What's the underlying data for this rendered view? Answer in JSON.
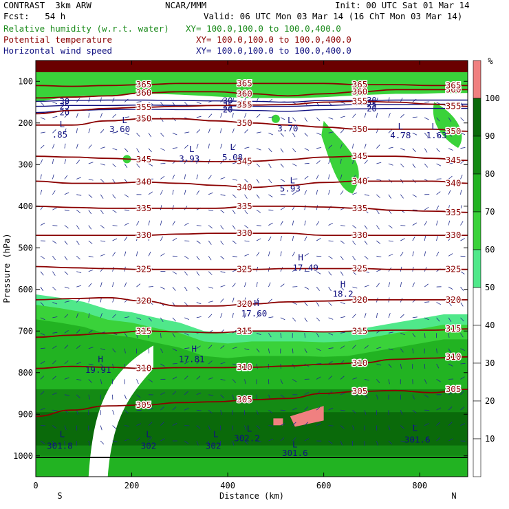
{
  "header": {
    "title_left": "CONTRAST  3km ARW",
    "fcst": "Fcst:   54 h",
    "source": "NCAR/MMM",
    "init": "Init: 00 UTC Sat 01 Mar 14",
    "valid": "Valid: 06 UTC Mon 03 Mar 14 (16 ChT Mon 03 Mar 14)",
    "rh_label": "Relative humidity (w.r.t. water)",
    "rh_xy": "XY= 100.0,100.0 to 100.0,400.0",
    "theta_label": "Potential temperature",
    "theta_xy": "XY= 100.0,100.0 to 100.0,400.0",
    "wind_label": "Horizontal wind speed",
    "wind_xy": "XY= 100.0,100.0 to 100.0,400.0"
  },
  "colors": {
    "rh": "#1a8a1a",
    "theta": "#8b0000",
    "wind": "#101080",
    "vectors": "#1e2a8c",
    "rh_scale": [
      "#ffffff",
      "#ffffff",
      "#ffffff",
      "#ffffff",
      "#ffffff",
      "#50e88a",
      "#3ad23a",
      "#22b322",
      "#148a14",
      "#0a6a0a",
      "#f08080"
    ]
  },
  "chart_data": {
    "type": "heatmap",
    "description_ok": false,
    "xlabel": "Distance (km)",
    "ylabel": "Pressure (hPa)",
    "xlim": [
      0,
      900
    ],
    "ylim": [
      1050,
      50
    ],
    "x_ticks": [
      0,
      200,
      400,
      600,
      800
    ],
    "y_ticks": [
      100,
      200,
      300,
      400,
      500,
      600,
      700,
      800,
      900,
      1000
    ],
    "x_end_labels": [
      "S",
      "N"
    ],
    "colorbar": {
      "unit": "%",
      "levels": [
        10,
        20,
        30,
        40,
        50,
        60,
        70,
        80,
        90,
        100
      ]
    },
    "theta_contours": [
      {
        "value": 305,
        "p": [
          905,
          890,
          880,
          878,
          872,
          870,
          865,
          862,
          850,
          845,
          843,
          848,
          840
        ]
      },
      {
        "value": 310,
        "p": [
          790,
          785,
          787,
          790,
          788,
          788,
          787,
          784,
          780,
          777,
          768,
          765,
          762
        ]
      },
      {
        "value": 315,
        "p": [
          715,
          710,
          705,
          700,
          702,
          704,
          700,
          700,
          702,
          700,
          698,
          698,
          695
        ]
      },
      {
        "value": 320,
        "p": [
          625,
          622,
          620,
          628,
          640,
          640,
          635,
          630,
          628,
          625,
          625,
          625,
          625
        ]
      },
      {
        "value": 325,
        "p": [
          545,
          548,
          550,
          552,
          552,
          552,
          552,
          550,
          550,
          550,
          552,
          552,
          552
        ]
      },
      {
        "value": 330,
        "p": [
          470,
          470,
          470,
          470,
          467,
          465,
          465,
          465,
          470,
          470,
          470,
          470,
          470
        ]
      },
      {
        "value": 335,
        "p": [
          400,
          403,
          405,
          405,
          405,
          405,
          400,
          400,
          402,
          405,
          410,
          412,
          415
        ]
      },
      {
        "value": 340,
        "p": [
          340,
          345,
          345,
          342,
          345,
          350,
          355,
          350,
          343,
          340,
          340,
          340,
          345
        ]
      },
      {
        "value": 345,
        "p": [
          280,
          282,
          285,
          288,
          292,
          293,
          292,
          288,
          282,
          280,
          280,
          285,
          290
        ]
      },
      {
        "value": 350,
        "p": [
          205,
          205,
          195,
          190,
          190,
          195,
          200,
          205,
          210,
          215,
          215,
          215,
          220
        ]
      },
      {
        "value": 355,
        "p": [
          178,
          170,
          165,
          162,
          160,
          158,
          157,
          156,
          150,
          148,
          150,
          155,
          160
        ]
      },
      {
        "value": 360,
        "p": [
          140,
          138,
          135,
          128,
          125,
          125,
          130,
          135,
          130,
          125,
          120,
          120,
          120
        ]
      },
      {
        "value": 365,
        "p": [
          110,
          112,
          110,
          108,
          105,
          105,
          105,
          105,
          105,
          108,
          108,
          110,
          110
        ]
      }
    ],
    "wind_contours": [
      {
        "value": 20,
        "p": [
          175,
          170,
          168,
          167,
          168,
          168,
          170,
          172,
          168,
          166,
          165,
          165,
          165
        ]
      },
      {
        "value": 25,
        "p": [
          160,
          158,
          158,
          157,
          158,
          158,
          160,
          160,
          158,
          156,
          156,
          155,
          155
        ]
      },
      {
        "value": 30,
        "p": [
          148,
          146,
          145,
          145,
          146,
          147,
          148,
          150,
          146,
          146,
          145,
          145,
          145
        ]
      }
    ],
    "rh_fields": [
      {
        "level": 50,
        "region": "lower-left",
        "p_top": [
          612,
          620,
          630,
          648,
          655,
          668,
          680,
          700,
          705,
          700,
          700,
          700,
          702,
          700,
          690,
          680,
          670,
          660,
          660
        ],
        "x": [
          0,
          50,
          100,
          150,
          200,
          250,
          300,
          350,
          400,
          450,
          500,
          550,
          600,
          650,
          700,
          750,
          800,
          850,
          900
        ]
      },
      {
        "level": 50,
        "region": "upper-band",
        "p_bottom": [
          150,
          140,
          135,
          135,
          130,
          130,
          132,
          135,
          138,
          140,
          140,
          140,
          138,
          135,
          132,
          130,
          130,
          128,
          128
        ]
      }
    ],
    "labels": [
      {
        "text": "L",
        "x": 55,
        "p": 210
      },
      {
        "text": ".85",
        "x": 50,
        "p": 235
      },
      {
        "text": "L",
        "x": 185,
        "p": 200
      },
      {
        "text": "3.60",
        "x": 175,
        "p": 222
      },
      {
        "text": "L",
        "x": 325,
        "p": 270
      },
      {
        "text": "3.93",
        "x": 320,
        "p": 293
      },
      {
        "text": "L",
        "x": 410,
        "p": 265
      },
      {
        "text": "5.08",
        "x": 410,
        "p": 290
      },
      {
        "text": "L",
        "x": 530,
        "p": 200
      },
      {
        "text": "3.70",
        "x": 525,
        "p": 220
      },
      {
        "text": "L",
        "x": 760,
        "p": 215
      },
      {
        "text": "4.78",
        "x": 760,
        "p": 237
      },
      {
        "text": "L",
        "x": 830,
        "p": 215
      },
      {
        "text": "1.63",
        "x": 835,
        "p": 237
      },
      {
        "text": "L",
        "x": 535,
        "p": 345
      },
      {
        "text": "5.93",
        "x": 530,
        "p": 365
      },
      {
        "text": "H",
        "x": 552,
        "p": 530
      },
      {
        "text": "17.49",
        "x": 562,
        "p": 555
      },
      {
        "text": "H",
        "x": 640,
        "p": 595
      },
      {
        "text": "18.2",
        "x": 640,
        "p": 618
      },
      {
        "text": "H",
        "x": 460,
        "p": 640
      },
      {
        "text": "17.60",
        "x": 455,
        "p": 665
      },
      {
        "text": "H",
        "x": 330,
        "p": 750
      },
      {
        "text": "17.81",
        "x": 325,
        "p": 775
      },
      {
        "text": "H",
        "x": 135,
        "p": 775
      },
      {
        "text": "19.91",
        "x": 130,
        "p": 800
      },
      {
        "text": "L",
        "x": 55,
        "p": 955
      },
      {
        "text": "301.8",
        "x": 50,
        "p": 983
      },
      {
        "text": "L",
        "x": 235,
        "p": 955
      },
      {
        "text": "302",
        "x": 235,
        "p": 983
      },
      {
        "text": "L",
        "x": 375,
        "p": 955
      },
      {
        "text": "302",
        "x": 370,
        "p": 983
      },
      {
        "text": "L",
        "x": 445,
        "p": 942
      },
      {
        "text": "302.2",
        "x": 440,
        "p": 965
      },
      {
        "text": "L",
        "x": 540,
        "p": 980
      },
      {
        "text": "301.6",
        "x": 540,
        "p": 1000
      },
      {
        "text": "L",
        "x": 790,
        "p": 940
      },
      {
        "text": "301.6",
        "x": 795,
        "p": 968
      }
    ]
  }
}
